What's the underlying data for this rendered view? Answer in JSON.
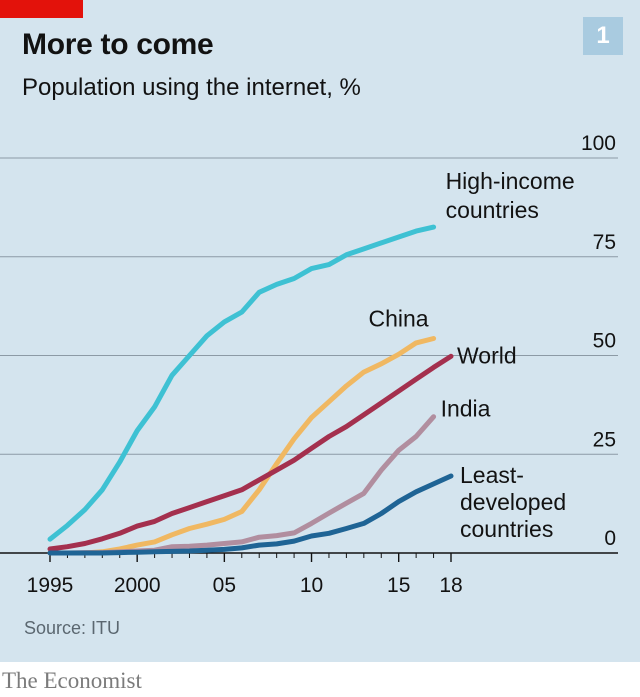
{
  "header": {
    "title": "More to come",
    "subtitle": "Population using the internet, %",
    "chart_number": "1"
  },
  "footer": {
    "source": "Source: ITU",
    "brand": "The Economist"
  },
  "colors": {
    "background": "#d4e4ee",
    "accent_red": "#e3120b",
    "badge": "#a9cbe0",
    "gridline": "#8c9aa5"
  },
  "chart_data": {
    "type": "line",
    "title": "More to come",
    "subtitle": "Population using the internet, %",
    "xlim": [
      1995,
      2018
    ],
    "ylim": [
      0,
      100
    ],
    "x_ticks": [
      {
        "value": 1995,
        "label": "1995"
      },
      {
        "value": 2000,
        "label": "2000"
      },
      {
        "value": 2005,
        "label": "05"
      },
      {
        "value": 2010,
        "label": "10"
      },
      {
        "value": 2015,
        "label": "15"
      },
      {
        "value": 2018,
        "label": "18"
      }
    ],
    "y_ticks": [
      {
        "value": 0,
        "label": "0"
      },
      {
        "value": 25,
        "label": "25"
      },
      {
        "value": 50,
        "label": "50"
      },
      {
        "value": 75,
        "label": "75"
      },
      {
        "value": 100,
        "label": "100"
      }
    ],
    "y_axis_side": "right",
    "grid": "horizontal",
    "series": [
      {
        "name": "High-income countries",
        "label_lines": [
          "High-income",
          "countries"
        ],
        "color": "#3ec1d3",
        "x": [
          1995,
          1996,
          1997,
          1998,
          1999,
          2000,
          2001,
          2002,
          2003,
          2004,
          2005,
          2006,
          2007,
          2008,
          2009,
          2010,
          2011,
          2012,
          2013,
          2014,
          2015,
          2016,
          2017
        ],
        "y": [
          3.5,
          7,
          11,
          16,
          23,
          31,
          37,
          45,
          50,
          55,
          58.5,
          61,
          66,
          68,
          69.5,
          72,
          73,
          75.5,
          77,
          78.5,
          80,
          81.5,
          82.5
        ]
      },
      {
        "name": "China",
        "label_lines": [
          "China"
        ],
        "color": "#f0b862",
        "x": [
          1995,
          1996,
          1997,
          1998,
          1999,
          2000,
          2001,
          2002,
          2003,
          2004,
          2005,
          2006,
          2007,
          2008,
          2009,
          2010,
          2011,
          2012,
          2013,
          2014,
          2015,
          2016,
          2017
        ],
        "y": [
          0,
          0,
          0,
          0.3,
          1,
          2,
          2.8,
          4.6,
          6.2,
          7.3,
          8.5,
          10.5,
          16,
          22.6,
          28.9,
          34.3,
          38.3,
          42.3,
          45.8,
          47.9,
          50.3,
          53.2,
          54.3
        ]
      },
      {
        "name": "World",
        "label_lines": [
          "World"
        ],
        "color": "#a4304e",
        "x": [
          1995,
          1996,
          1997,
          1998,
          1999,
          2000,
          2001,
          2002,
          2003,
          2004,
          2005,
          2006,
          2007,
          2008,
          2009,
          2010,
          2011,
          2012,
          2013,
          2014,
          2015,
          2016,
          2017,
          2018
        ],
        "y": [
          1,
          1.6,
          2.4,
          3.6,
          5,
          6.8,
          8,
          10,
          11.5,
          13,
          14.5,
          16,
          18.5,
          21,
          23.5,
          26.5,
          29.5,
          32,
          35,
          38,
          41,
          44,
          47,
          49.8
        ]
      },
      {
        "name": "India",
        "label_lines": [
          "India"
        ],
        "color": "#b18e9f",
        "x": [
          1995,
          1996,
          1997,
          1998,
          1999,
          2000,
          2001,
          2002,
          2003,
          2004,
          2005,
          2006,
          2007,
          2008,
          2009,
          2010,
          2011,
          2012,
          2013,
          2014,
          2015,
          2016,
          2017
        ],
        "y": [
          0,
          0,
          0.1,
          0.1,
          0.3,
          0.5,
          0.7,
          1.6,
          1.7,
          2,
          2.4,
          2.8,
          4,
          4.4,
          5.1,
          7.5,
          10.1,
          12.6,
          15.1,
          21,
          26,
          29.5,
          34.5
        ]
      },
      {
        "name": "Least-developed countries",
        "label_lines": [
          "Least-",
          "developed",
          "countries"
        ],
        "color": "#1f6495",
        "x": [
          1995,
          1996,
          1997,
          1998,
          1999,
          2000,
          2001,
          2002,
          2003,
          2004,
          2005,
          2006,
          2007,
          2008,
          2009,
          2010,
          2011,
          2012,
          2013,
          2014,
          2015,
          2016,
          2017,
          2018
        ],
        "y": [
          0,
          0,
          0,
          0,
          0.1,
          0.2,
          0.3,
          0.4,
          0.5,
          0.7,
          0.9,
          1.3,
          2,
          2.3,
          3,
          4.3,
          5,
          6.2,
          7.5,
          10,
          13,
          15.5,
          17.5,
          19.5
        ]
      }
    ]
  }
}
